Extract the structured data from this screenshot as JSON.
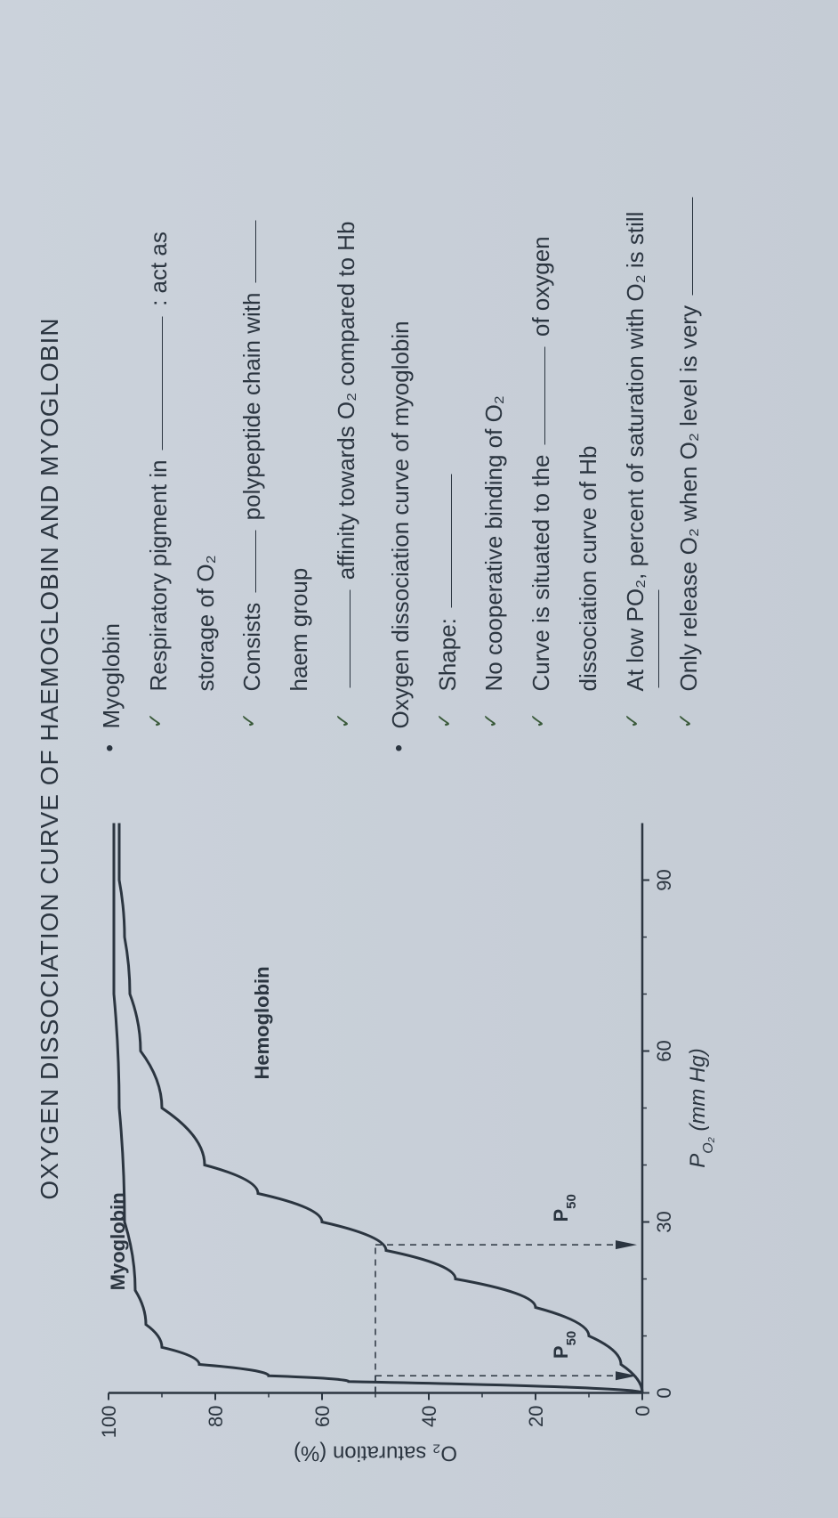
{
  "title": "OXYGEN DISSOCIATION CURVE OF HAEMOGLOBIN AND MYOGLOBIN",
  "chart": {
    "type": "line",
    "x_label": "P",
    "x_label_sub": "O₂",
    "x_label_unit": "(mm Hg)",
    "y_label": "O₂ saturation (%)",
    "x_ticks": [
      0,
      30,
      60,
      90
    ],
    "y_ticks": [
      0,
      20,
      40,
      60,
      80,
      100
    ],
    "xlim": [
      0,
      100
    ],
    "ylim": [
      0,
      100
    ],
    "background_color": "#c5ccd5",
    "axis_color": "#2b3540",
    "curve_color": "#2b3540",
    "line_width": 3,
    "dash_color": "#2b3540",
    "p50_label": "P₅₀",
    "series": [
      {
        "name": "Myoglobin",
        "label": "Myoglobin",
        "label_pos": {
          "x": 18,
          "y": 97
        },
        "data": [
          [
            0,
            0
          ],
          [
            2,
            55
          ],
          [
            3,
            70
          ],
          [
            5,
            83
          ],
          [
            8,
            90
          ],
          [
            12,
            93
          ],
          [
            18,
            95
          ],
          [
            30,
            97
          ],
          [
            50,
            98
          ],
          [
            70,
            99
          ],
          [
            90,
            99
          ],
          [
            100,
            99
          ]
        ]
      },
      {
        "name": "Hemoglobin",
        "label": "Hemoglobin",
        "label_pos": {
          "x": 55,
          "y": 70
        },
        "data": [
          [
            0,
            0
          ],
          [
            5,
            4
          ],
          [
            10,
            10
          ],
          [
            15,
            20
          ],
          [
            20,
            35
          ],
          [
            25,
            48
          ],
          [
            30,
            60
          ],
          [
            35,
            72
          ],
          [
            40,
            82
          ],
          [
            50,
            90
          ],
          [
            60,
            94
          ],
          [
            70,
            96
          ],
          [
            80,
            97
          ],
          [
            90,
            98
          ],
          [
            100,
            98
          ]
        ]
      }
    ],
    "p50_markers": [
      {
        "x": 3,
        "y": 50,
        "label_x": 6,
        "label_y": 14
      },
      {
        "x": 26,
        "y": 50,
        "label_x": 30,
        "label_y": 14
      }
    ]
  },
  "notes": {
    "section1_title": "Myoglobin",
    "s1_l1_a": "Respiratory pigment in ",
    "s1_l1_b": " : act as",
    "s1_l2": "storage of O₂",
    "s1_l3_a": "Consists ",
    "s1_l3_b": " polypeptide chain with ",
    "s1_l4": "haem group",
    "s1_l5": " affinity towards O₂ compared to Hb",
    "section2_title": "Oxygen dissociation curve of myoglobin",
    "s2_l1": "Shape: ",
    "s2_l2": "No cooperative binding of O₂",
    "s2_l3_a": "Curve is situated to the ",
    "s2_l3_b": " of oxygen",
    "s2_l4": "dissociation curve of Hb",
    "s2_l5": "At low PO₂, percent of saturation with O₂ is still",
    "s2_l6": "Only release O₂ when O₂ level is very "
  }
}
